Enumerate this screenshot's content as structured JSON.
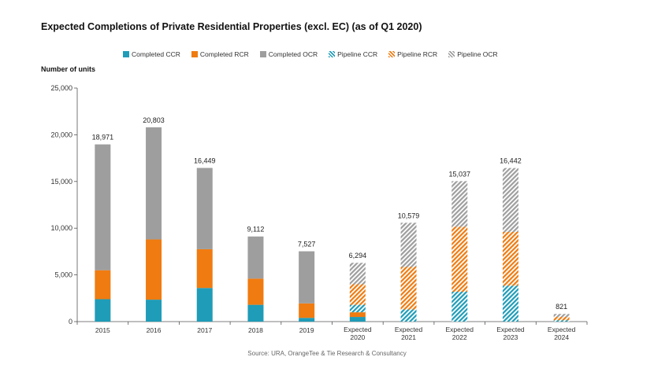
{
  "chart_data": {
    "type": "bar",
    "stacked": true,
    "title": "Expected Completions of Private Residential Properties (excl. EC) (as of Q1 2020)",
    "ylabel": "Number of units",
    "source": "Source: URA, OrangeTee & Tie Research & Consultancy",
    "ylim": [
      0,
      25000
    ],
    "yticks": [
      "0",
      "5,000",
      "10,000",
      "15,000",
      "20,000",
      "25,000"
    ],
    "ytick_values": [
      0,
      5000,
      10000,
      15000,
      20000,
      25000
    ],
    "legend_position": "top",
    "categories": [
      [
        "2015"
      ],
      [
        "2016"
      ],
      [
        "2017"
      ],
      [
        "2018"
      ],
      [
        "2019"
      ],
      [
        "Expected",
        "2020"
      ],
      [
        "Expected",
        "2021"
      ],
      [
        "Expected",
        "2022"
      ],
      [
        "Expected",
        "2023"
      ],
      [
        "Expected",
        "2024"
      ]
    ],
    "totals": [
      18971,
      20803,
      16449,
      9112,
      7527,
      6294,
      10579,
      15037,
      16442,
      821
    ],
    "total_labels": [
      "18,971",
      "20,803",
      "16,449",
      "9,112",
      "7,527",
      "6,294",
      "10,579",
      "15,037",
      "16,442",
      "821"
    ],
    "series": [
      {
        "name": "Completed CCR",
        "color": "#1f9cb8",
        "pattern": "solid",
        "values": [
          2400,
          2350,
          3600,
          1800,
          400,
          500,
          0,
          0,
          0,
          0
        ]
      },
      {
        "name": "Completed RCR",
        "color": "#f07b10",
        "pattern": "solid",
        "values": [
          3100,
          6450,
          4150,
          2800,
          1550,
          500,
          0,
          0,
          0,
          0
        ]
      },
      {
        "name": "Completed OCR",
        "color": "#9e9e9e",
        "pattern": "solid",
        "values": [
          13471,
          12003,
          8699,
          4512,
          5577,
          0,
          0,
          0,
          0,
          0
        ]
      },
      {
        "name": "Pipeline CCR",
        "color": "#1f9cb8",
        "pattern": "hatch",
        "values": [
          0,
          0,
          0,
          0,
          0,
          800,
          1300,
          3200,
          3850,
          150
        ]
      },
      {
        "name": "Pipeline RCR",
        "color": "#f07b10",
        "pattern": "hatch",
        "values": [
          0,
          0,
          0,
          0,
          0,
          2200,
          4550,
          6950,
          5750,
          350
        ]
      },
      {
        "name": "Pipeline OCR",
        "color": "#9e9e9e",
        "pattern": "hatch",
        "values": [
          0,
          0,
          0,
          0,
          0,
          2294,
          4729,
          4887,
          6842,
          321
        ]
      }
    ]
  }
}
